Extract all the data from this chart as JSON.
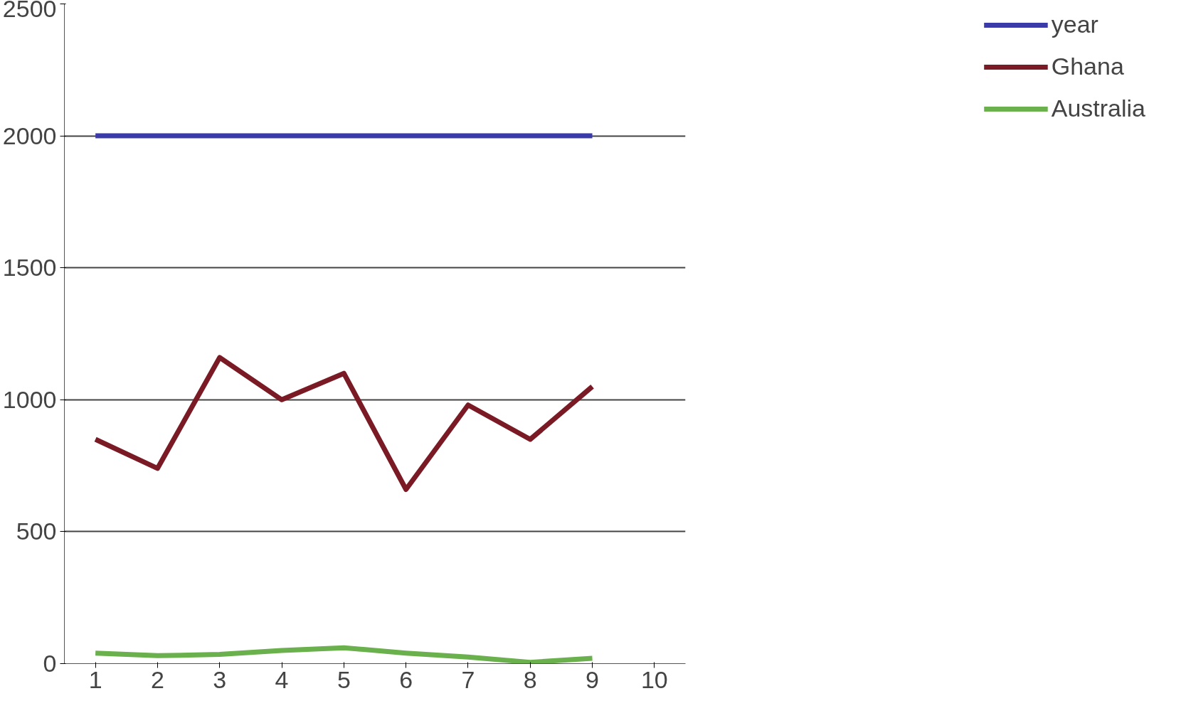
{
  "chart_data": {
    "type": "line",
    "categories": [
      "1",
      "2",
      "3",
      "4",
      "5",
      "6",
      "7",
      "8",
      "9",
      "10"
    ],
    "series": [
      {
        "name": "year",
        "color": "#3a3aa8",
        "values": [
          2000,
          2000,
          2000,
          2000,
          2000,
          2000,
          2000,
          2000,
          2000,
          null
        ]
      },
      {
        "name": "Ghana",
        "color": "#7a1a24",
        "values": [
          850,
          740,
          1160,
          1000,
          1100,
          660,
          980,
          850,
          1050,
          null
        ]
      },
      {
        "name": "Australia",
        "color": "#6ab04c",
        "values": [
          40,
          30,
          35,
          50,
          60,
          40,
          25,
          5,
          20,
          null
        ]
      }
    ],
    "ylim": [
      0,
      2500
    ],
    "yticks": [
      0,
      500,
      1000,
      1500,
      2000,
      2500
    ],
    "grid": "y",
    "legend": "right",
    "marker": "none",
    "line_style": "solid"
  }
}
